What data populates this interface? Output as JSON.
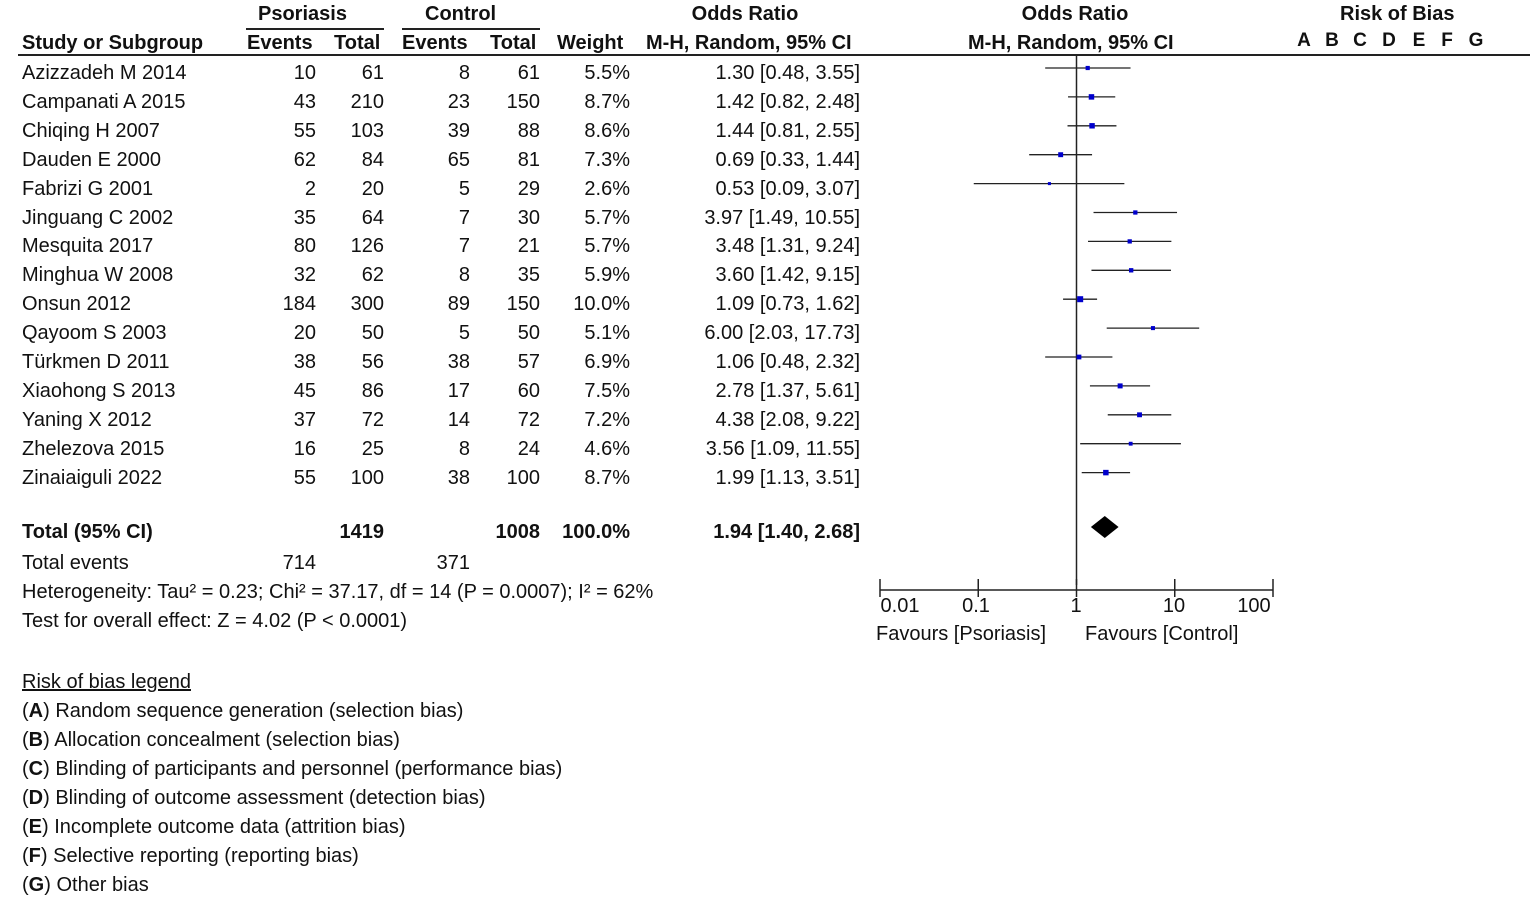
{
  "headers": {
    "group1": "Psoriasis",
    "group2": "Control",
    "or_top": "Odds Ratio",
    "or_plot_top": "Odds Ratio",
    "rob_top": "Risk of Bias",
    "study": "Study or Subgroup",
    "events1": "Events",
    "total1": "Total",
    "events2": "Events",
    "total2": "Total",
    "weight": "Weight",
    "or_method": "M-H, Random, 95% CI",
    "or_plot_method": "M-H, Random, 95% CI",
    "rob_cols": [
      "A",
      "B",
      "C",
      "D",
      "E",
      "F",
      "G"
    ]
  },
  "studies": [
    {
      "name": "Azizzadeh M 2014",
      "e1": "10",
      "t1": "61",
      "e2": "8",
      "t2": "61",
      "weight": "5.5%",
      "ci": "1.30 [0.48, 3.55]"
    },
    {
      "name": "Campanati A 2015",
      "e1": "43",
      "t1": "210",
      "e2": "23",
      "t2": "150",
      "weight": "8.7%",
      "ci": "1.42 [0.82, 2.48]"
    },
    {
      "name": "Chiqing H 2007",
      "e1": "55",
      "t1": "103",
      "e2": "39",
      "t2": "88",
      "weight": "8.6%",
      "ci": "1.44 [0.81, 2.55]"
    },
    {
      "name": "Dauden E 2000",
      "e1": "62",
      "t1": "84",
      "e2": "65",
      "t2": "81",
      "weight": "7.3%",
      "ci": "0.69 [0.33, 1.44]"
    },
    {
      "name": "Fabrizi G 2001",
      "e1": "2",
      "t1": "20",
      "e2": "5",
      "t2": "29",
      "weight": "2.6%",
      "ci": "0.53 [0.09, 3.07]"
    },
    {
      "name": "Jinguang C 2002",
      "e1": "35",
      "t1": "64",
      "e2": "7",
      "t2": "30",
      "weight": "5.7%",
      "ci": "3.97 [1.49, 10.55]"
    },
    {
      "name": "Mesquita 2017",
      "e1": "80",
      "t1": "126",
      "e2": "7",
      "t2": "21",
      "weight": "5.7%",
      "ci": "3.48 [1.31, 9.24]"
    },
    {
      "name": "Minghua W 2008",
      "e1": "32",
      "t1": "62",
      "e2": "8",
      "t2": "35",
      "weight": "5.9%",
      "ci": "3.60 [1.42, 9.15]"
    },
    {
      "name": "Onsun 2012",
      "e1": "184",
      "t1": "300",
      "e2": "89",
      "t2": "150",
      "weight": "10.0%",
      "ci": "1.09 [0.73, 1.62]"
    },
    {
      "name": "Qayoom S 2003",
      "e1": "20",
      "t1": "50",
      "e2": "5",
      "t2": "50",
      "weight": "5.1%",
      "ci": "6.00 [2.03, 17.73]"
    },
    {
      "name": "Türkmen D 2011",
      "e1": "38",
      "t1": "56",
      "e2": "38",
      "t2": "57",
      "weight": "6.9%",
      "ci": "1.06 [0.48, 2.32]"
    },
    {
      "name": "Xiaohong S 2013",
      "e1": "45",
      "t1": "86",
      "e2": "17",
      "t2": "60",
      "weight": "7.5%",
      "ci": "2.78 [1.37, 5.61]"
    },
    {
      "name": "Yaning X 2012",
      "e1": "37",
      "t1": "72",
      "e2": "14",
      "t2": "72",
      "weight": "7.2%",
      "ci": "4.38 [2.08, 9.22]"
    },
    {
      "name": "Zhelezova 2015",
      "e1": "16",
      "t1": "25",
      "e2": "8",
      "t2": "24",
      "weight": "4.6%",
      "ci": "3.56 [1.09, 11.55]"
    },
    {
      "name": "Zinaiaiguli 2022",
      "e1": "55",
      "t1": "100",
      "e2": "38",
      "t2": "100",
      "weight": "8.7%",
      "ci": "1.99 [1.13, 3.51]"
    }
  ],
  "total": {
    "label": "Total (95% CI)",
    "t1": "1419",
    "t2": "1008",
    "weight": "100.0%",
    "ci": "1.94 [1.40, 2.68]",
    "events_label": "Total events",
    "e1": "714",
    "e2": "371",
    "heterogeneity": "Heterogeneity: Tau² = 0.23; Chi² = 37.17, df = 14 (P = 0.0007); I² = 62%",
    "overall": "Test for overall effect: Z = 4.02 (P < 0.0001)"
  },
  "axis": {
    "ticks": [
      "0.01",
      "0.1",
      "1",
      "10",
      "100"
    ],
    "favours_left": "Favours [Psoriasis]",
    "favours_right": "Favours [Control]"
  },
  "legend": {
    "title": "Risk of bias legend",
    "items": [
      {
        "key": "A",
        "text": ") Random sequence generation (selection bias)"
      },
      {
        "key": "B",
        "text": ") Allocation concealment (selection bias)"
      },
      {
        "key": "C",
        "text": ") Blinding of participants and personnel (performance bias)"
      },
      {
        "key": "D",
        "text": ") Blinding of outcome assessment (detection bias)"
      },
      {
        "key": "E",
        "text": ") Incomplete outcome data (attrition bias)"
      },
      {
        "key": "F",
        "text": ") Selective reporting (reporting bias)"
      },
      {
        "key": "G",
        "text": ") Other bias"
      }
    ]
  },
  "colors": {
    "point": "#0000cc",
    "line": "#222222",
    "diamond": "#000000"
  },
  "chart_data": {
    "type": "forest",
    "title": "Odds Ratio",
    "xlabel": "M-H, Random, 95% CI",
    "xscale": "log",
    "xlim": [
      0.01,
      100
    ],
    "categories": [
      "Azizzadeh M 2014",
      "Campanati A 2015",
      "Chiqing H 2007",
      "Dauden E 2000",
      "Fabrizi G 2001",
      "Jinguang C 2002",
      "Mesquita 2017",
      "Minghua W 2008",
      "Onsun 2012",
      "Qayoom S 2003",
      "Türkmen D 2011",
      "Xiaohong S 2013",
      "Yaning X 2012",
      "Zhelezova 2015",
      "Zinaiaiguli 2022"
    ],
    "or": [
      1.3,
      1.42,
      1.44,
      0.69,
      0.53,
      3.97,
      3.48,
      3.6,
      1.09,
      6.0,
      1.06,
      2.78,
      4.38,
      3.56,
      1.99
    ],
    "lower": [
      0.48,
      0.82,
      0.81,
      0.33,
      0.09,
      1.49,
      1.31,
      1.42,
      0.73,
      2.03,
      0.48,
      1.37,
      2.08,
      1.09,
      1.13
    ],
    "upper": [
      3.55,
      2.48,
      2.55,
      1.44,
      3.07,
      10.55,
      9.24,
      9.15,
      1.62,
      17.73,
      2.32,
      5.61,
      9.22,
      11.55,
      3.51
    ],
    "weights": [
      5.5,
      8.7,
      8.6,
      7.3,
      2.6,
      5.7,
      5.7,
      5.9,
      10.0,
      5.1,
      6.9,
      7.5,
      7.2,
      4.6,
      8.7
    ],
    "pooled": {
      "or": 1.94,
      "lower": 1.4,
      "upper": 2.68
    },
    "legend": [
      "Favours [Psoriasis]",
      "Favours [Control]"
    ]
  }
}
